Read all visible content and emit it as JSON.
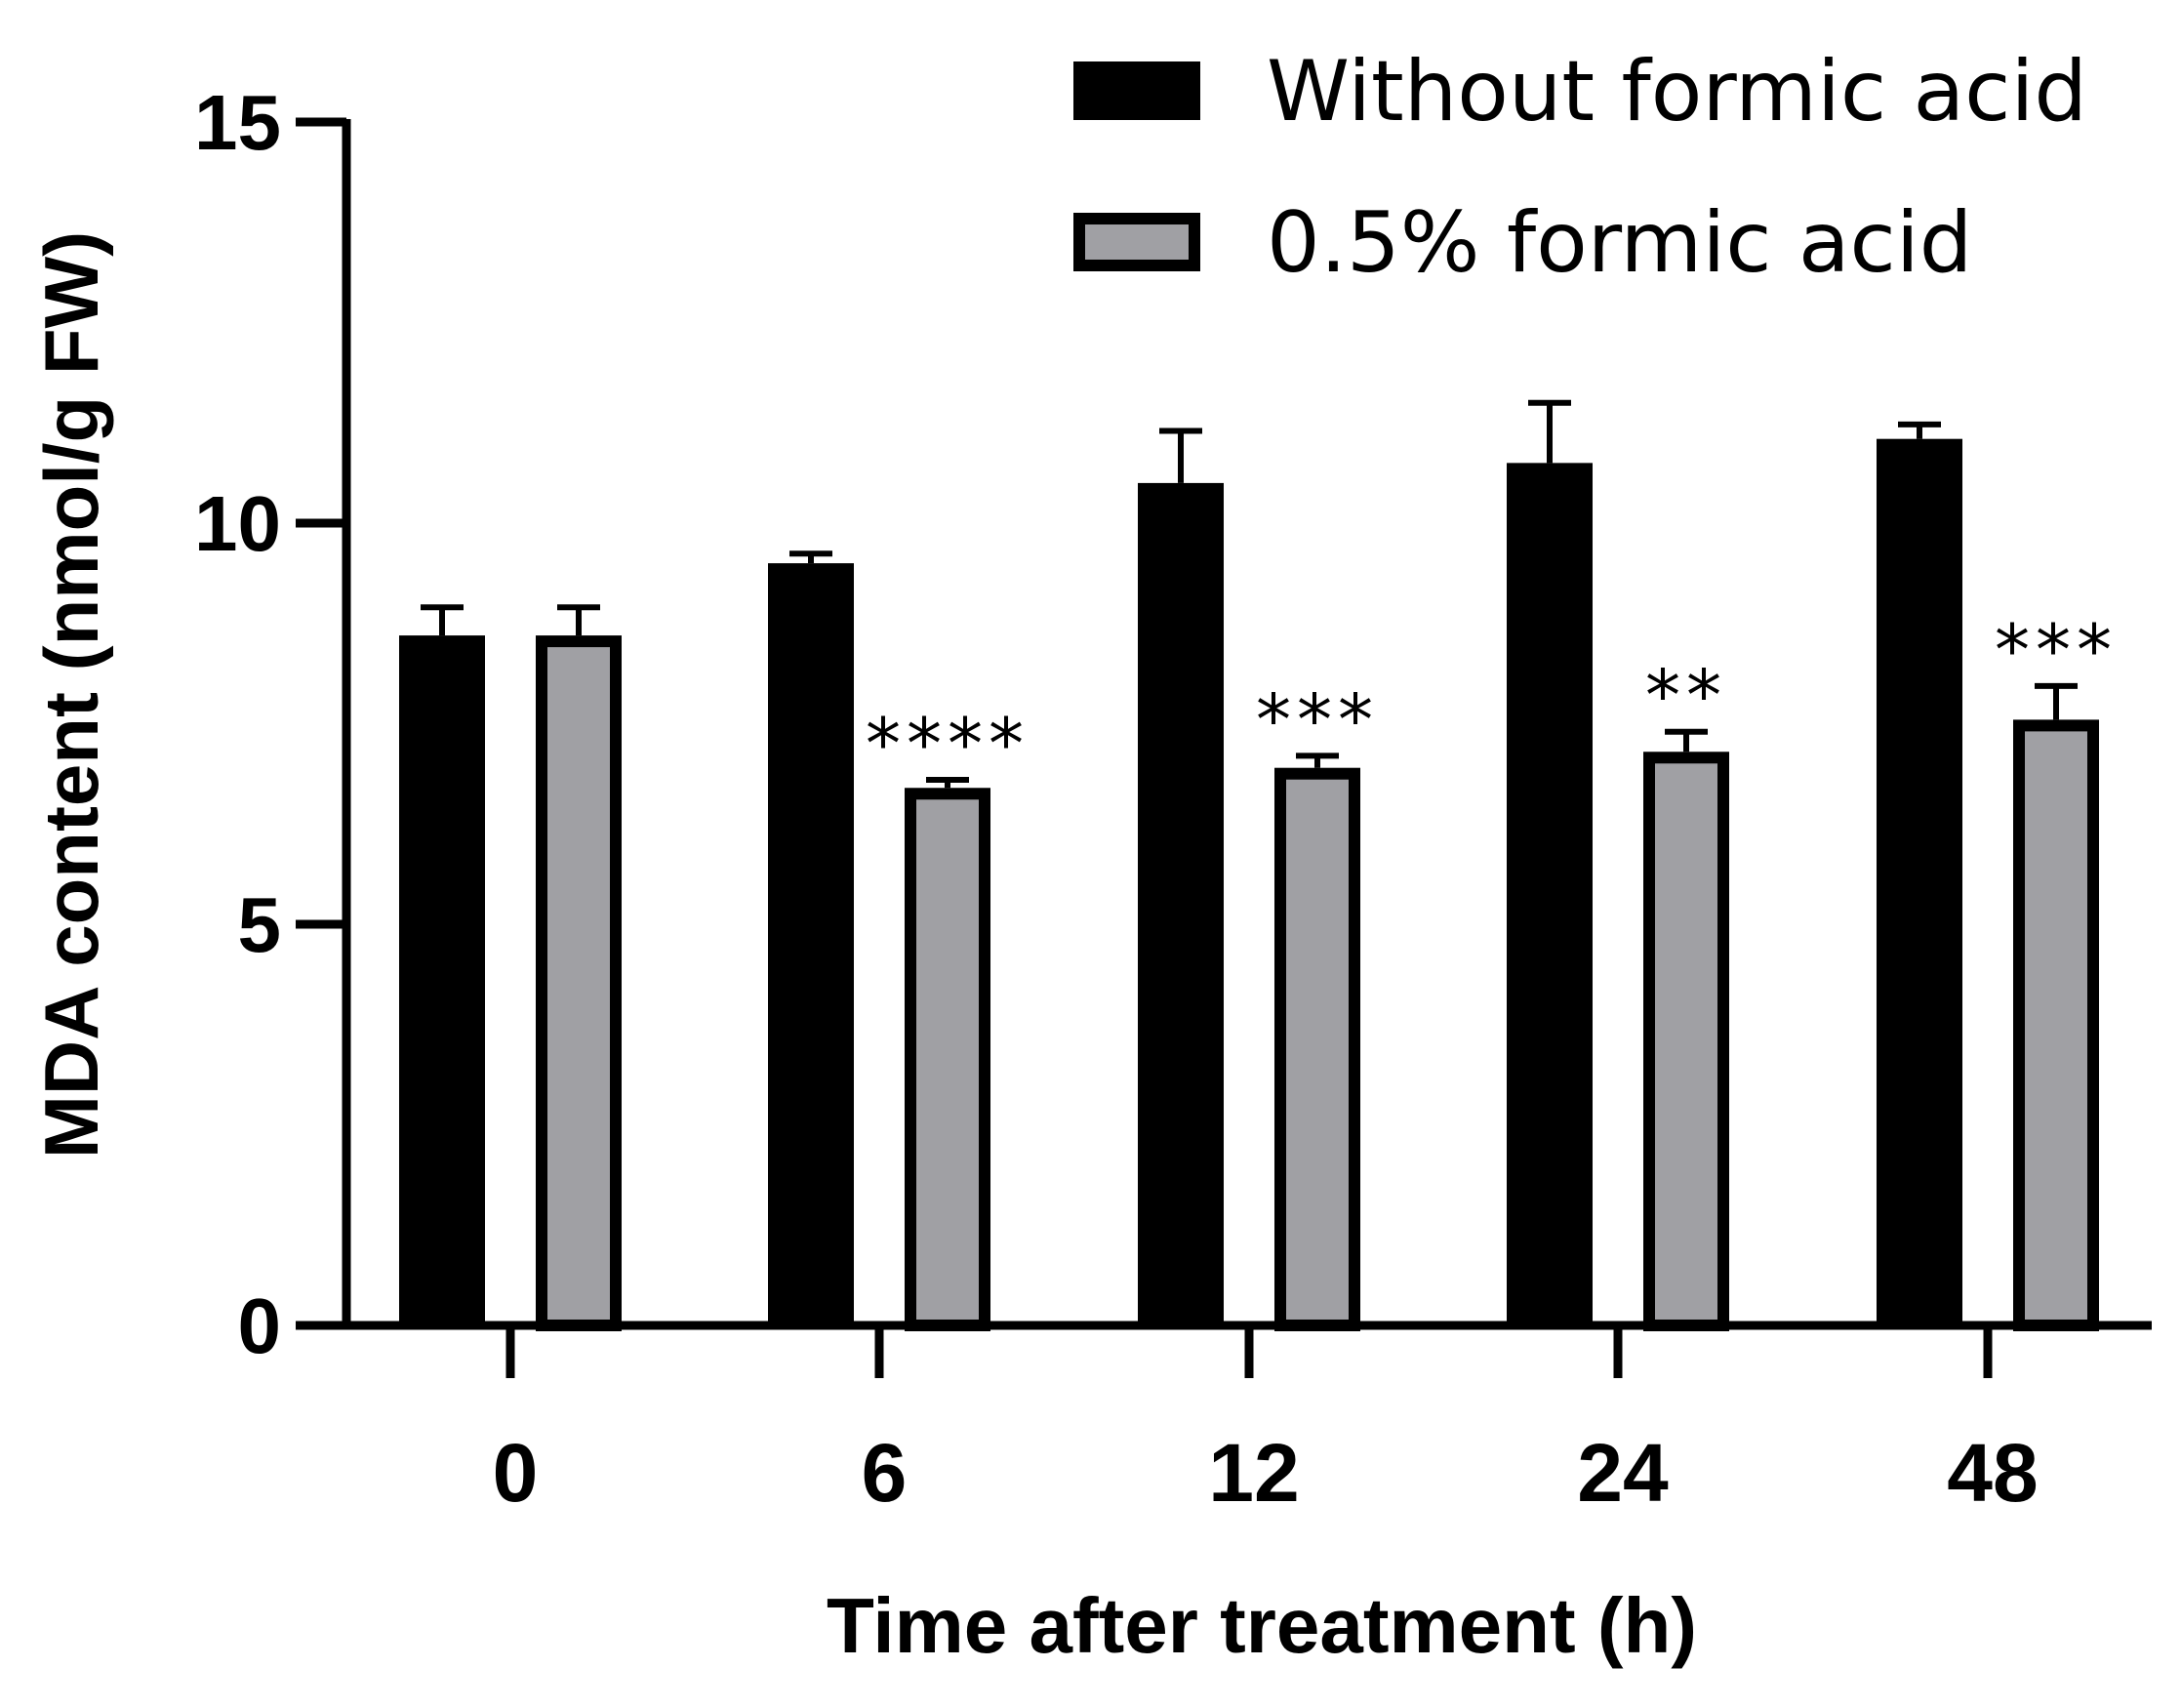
{
  "chart_data": {
    "type": "bar",
    "title": "",
    "xlabel": "Time after treatment (h)",
    "ylabel": "MDA content (nmol/g FW)",
    "ylim": [
      0,
      15
    ],
    "yticks": [
      0,
      5,
      10,
      15
    ],
    "categories": [
      "0",
      "6",
      "12",
      "24",
      "48"
    ],
    "series": [
      {
        "name": "Without formic acid",
        "color": "#000000",
        "values": [
          8.6,
          9.5,
          10.5,
          10.75,
          11.05
        ],
        "errors": [
          0.35,
          0.12,
          0.65,
          0.75,
          0.18
        ]
      },
      {
        "name": "0.5% formic acid",
        "color": "#a0a0a4",
        "values": [
          8.6,
          6.7,
          6.95,
          7.15,
          7.55
        ],
        "errors": [
          0.35,
          0.1,
          0.15,
          0.25,
          0.42
        ]
      }
    ],
    "significance": [
      "",
      "****",
      "***",
      "**",
      "***"
    ],
    "legend_position": "top-right",
    "grid": false
  }
}
